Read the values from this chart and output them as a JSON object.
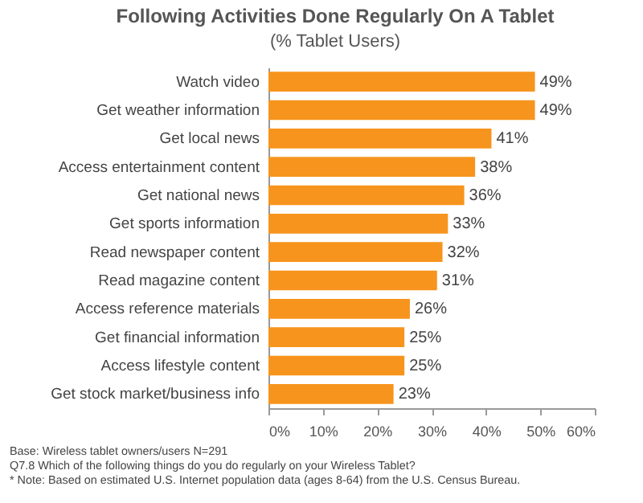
{
  "chart_data": {
    "type": "bar",
    "orientation": "horizontal",
    "title": "Following Activities Done Regularly On A Tablet",
    "subtitle": "(% Tablet Users)",
    "categories": [
      "Watch video",
      "Get weather information",
      "Get local news",
      "Access entertainment content",
      "Get national news",
      "Get sports information",
      "Read newspaper content",
      "Read magazine content",
      "Access reference materials",
      "Get financial information",
      "Access lifestyle content",
      "Get stock market/business info"
    ],
    "values": [
      49,
      49,
      41,
      38,
      36,
      33,
      32,
      31,
      26,
      25,
      25,
      23
    ],
    "value_labels": [
      "49%",
      "49%",
      "41%",
      "38%",
      "36%",
      "33%",
      "32%",
      "31%",
      "26%",
      "25%",
      "25%",
      "23%"
    ],
    "color": "#f7941d",
    "xlim": [
      0,
      60
    ],
    "xticks": [
      {
        "value": 0,
        "label": "0%"
      },
      {
        "value": 10,
        "label": "10%"
      },
      {
        "value": 20,
        "label": "20%"
      },
      {
        "value": 30,
        "label": "30%"
      },
      {
        "value": 40,
        "label": "40%"
      },
      {
        "value": 50,
        "label": "50%"
      },
      {
        "value": 60,
        "label": "60%"
      }
    ],
    "annotations": [
      "Base: Wireless tablet owners/users N=291",
      "Q7.8 Which of the following things do you do regularly on your Wireless Tablet?",
      "* Note: Based on estimated U.S. Internet population data (ages 8-64) from the U.S. Census Bureau."
    ]
  }
}
